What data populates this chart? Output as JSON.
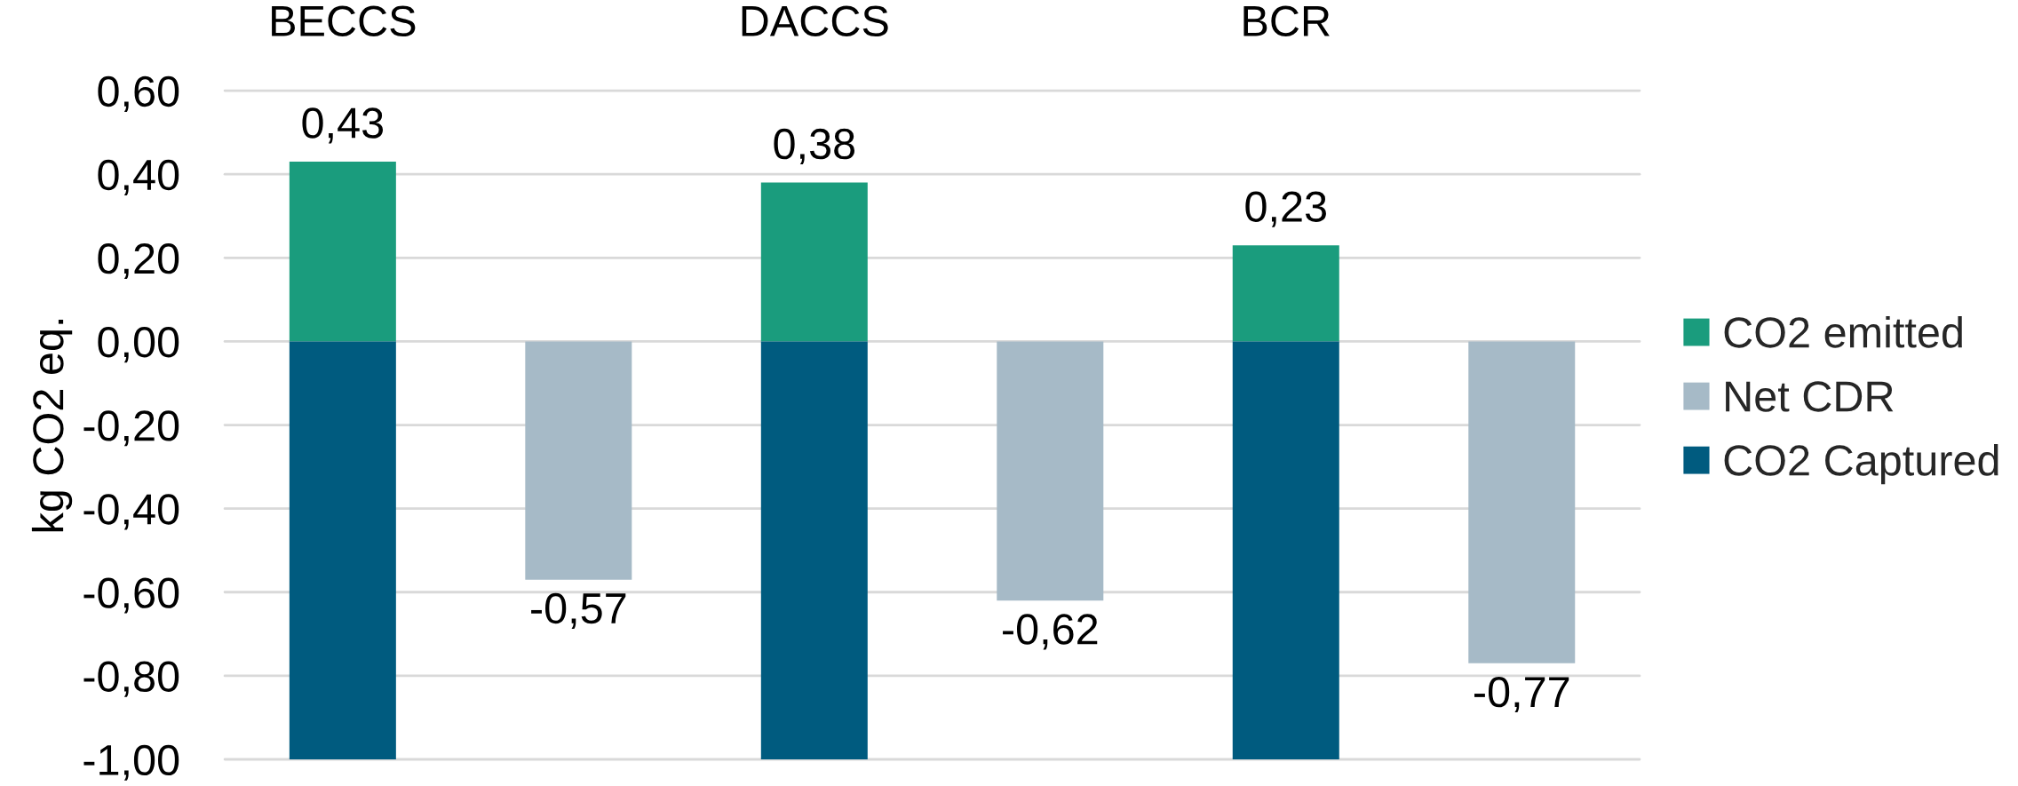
{
  "chart_data": {
    "type": "bar",
    "categories": [
      "BECCS",
      null,
      "DACCS",
      null,
      "BCR",
      null
    ],
    "ylabel": "kg CO2 eq.",
    "stacked": true,
    "series": [
      {
        "name": "CO2 emitted",
        "color": "#1a9c7d",
        "values": [
          0.43,
          null,
          0.38,
          null,
          0.23,
          null
        ],
        "value_labels": [
          "0,43",
          null,
          "0,38",
          null,
          "0,23",
          null
        ]
      },
      {
        "name": "Net CDR",
        "color": "#a6bac7",
        "values": [
          null,
          -0.57,
          null,
          -0.62,
          null,
          -0.77
        ],
        "value_labels": [
          null,
          "-0,57",
          null,
          "-0,62",
          null,
          "-0,77"
        ]
      },
      {
        "name": "CO2 Captured",
        "color": "#005b7f",
        "values": [
          -1,
          null,
          -1,
          null,
          -1,
          null
        ]
      }
    ],
    "ylim": [
      -1,
      0.6
    ],
    "yticks": [
      {
        "value": 0.6,
        "label": "0,60"
      },
      {
        "value": 0.4,
        "label": "0,40"
      },
      {
        "value": 0.2,
        "label": "0,20"
      },
      {
        "value": 0,
        "label": "0,00"
      },
      {
        "value": -0.2,
        "label": "-0,20"
      },
      {
        "value": -0.4,
        "label": "-0,40"
      },
      {
        "value": -0.6,
        "label": "-0,60"
      },
      {
        "value": -0.8,
        "label": "-0,80"
      },
      {
        "value": -1,
        "label": "-1,00"
      }
    ],
    "grid": "y",
    "legend": "right"
  }
}
